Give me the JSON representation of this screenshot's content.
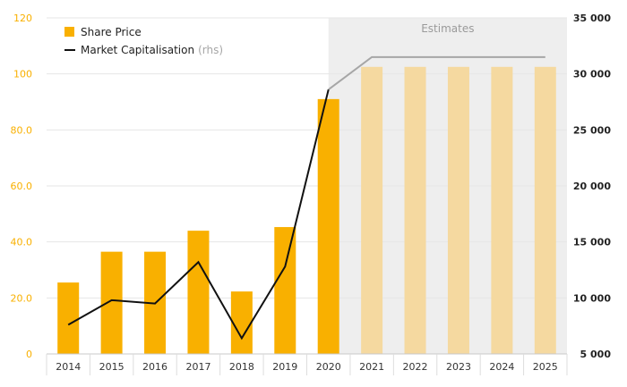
{
  "chart_data": {
    "type": "bar",
    "categories": [
      "2014",
      "2015",
      "2016",
      "2017",
      "2018",
      "2019",
      "2020",
      "2021",
      "2022",
      "2023",
      "2024",
      "2025"
    ],
    "series": [
      {
        "name": "Share Price",
        "type": "bar",
        "axis": "left",
        "values": [
          25.5,
          36.5,
          36.5,
          44,
          22.3,
          45.3,
          91,
          102.5,
          102.5,
          102.5,
          102.5,
          102.5
        ],
        "estimate_from_index": 7,
        "color": "#F9B000",
        "estimate_color": "#F5D9A0"
      },
      {
        "name": "Market Capitalisation",
        "name_suffix": "(rhs)",
        "type": "line",
        "axis": "right",
        "values": [
          7600,
          9800,
          9500,
          13200,
          6400,
          12800,
          28600,
          31500,
          31500,
          31500,
          31500,
          31500
        ],
        "estimate_from_index": 6,
        "color": "#111111",
        "estimate_color": "#A6A6A6"
      }
    ],
    "y_left": {
      "ylim": [
        0,
        120
      ],
      "ticks": [
        "0",
        "20.0",
        "40.0",
        "60.0",
        "80.0",
        "100",
        "120"
      ],
      "tick_color": "#F9B000"
    },
    "y_right": {
      "ylim": [
        5000,
        35000
      ],
      "ticks": [
        "5 000",
        "10 000",
        "15 000",
        "20 000",
        "25 000",
        "30 000",
        "35 000"
      ]
    },
    "estimates_label": "Estimates",
    "estimates_start_index": 7,
    "grid": true,
    "legend_position": "top-left"
  }
}
